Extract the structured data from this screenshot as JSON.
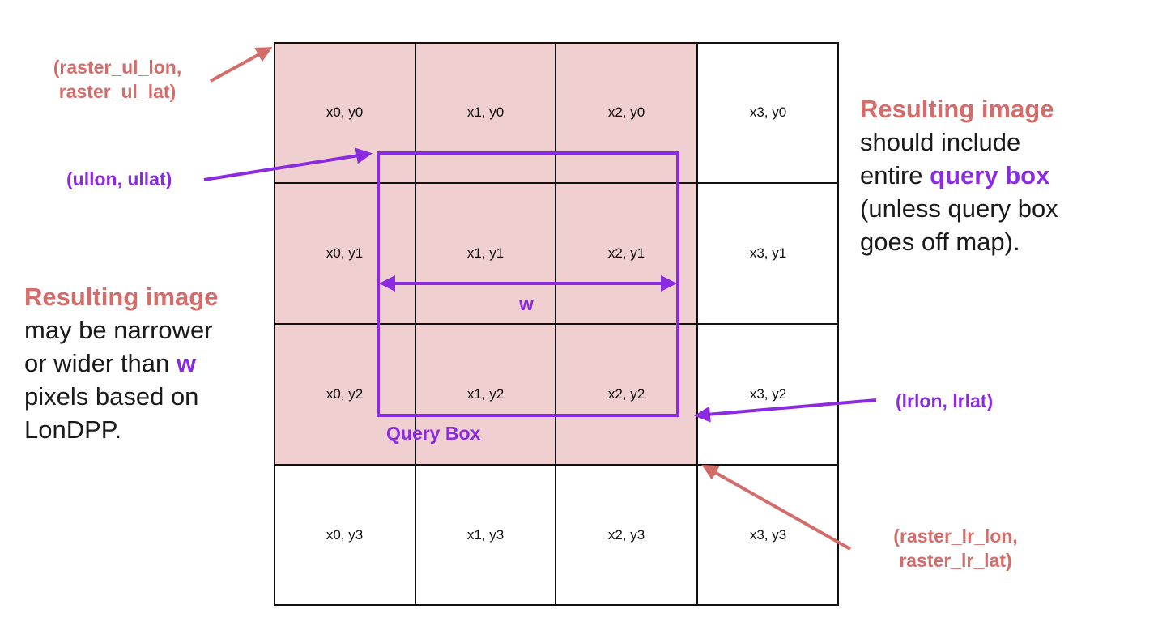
{
  "cells": [
    [
      "x0, y0",
      "x1, y0",
      "x2, y0",
      "x3, y0"
    ],
    [
      "x0, y1",
      "x1, y1",
      "x2, y1",
      "x3, y1"
    ],
    [
      "x0, y2",
      "x1, y2",
      "x2, y2",
      "x3, y2"
    ],
    [
      "x0, y3",
      "x1, y3",
      "x2, y3",
      "x3, y3"
    ]
  ],
  "labels": {
    "raster_ul_line1": "(raster_ul_lon,",
    "raster_ul_line2": "raster_ul_lat)",
    "ul": "(ullon, ullat)",
    "lr": "(lrlon, lrlat)",
    "raster_lr_line1": "(raster_lr_lon,",
    "raster_lr_line2": "raster_lr_lat)",
    "width": "w",
    "query_box": "Query Box"
  },
  "right_text": {
    "heading": "Resulting image",
    "line1": "should include",
    "line2_pre": "entire",
    "line2_em": "query box",
    "line3": "(unless query box",
    "line4": "goes off map)."
  },
  "left_text": {
    "heading": "Resulting image",
    "line1": "may be narrower",
    "line2_pre": "or wider than",
    "line2_em": "w",
    "line3": "pixels based on",
    "line4": "LonDPP."
  },
  "colors": {
    "filled_cell": "#efcfd0",
    "red_label": "#d46d6a",
    "purple": "#8a2be2",
    "grid_line": "#111111"
  }
}
